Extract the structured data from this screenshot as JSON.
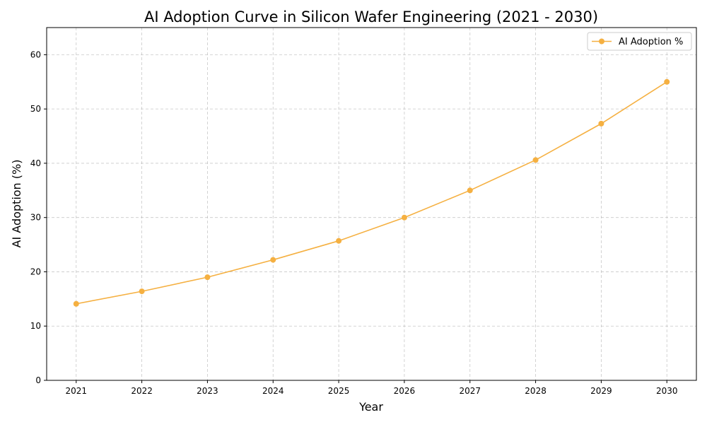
{
  "chart_data": {
    "type": "line",
    "title": "AI Adoption Curve in Silicon Wafer Engineering (2021 - 2030)",
    "xlabel": "Year",
    "ylabel": "AI Adoption (%)",
    "x": [
      2021,
      2022,
      2023,
      2024,
      2025,
      2026,
      2027,
      2028,
      2029,
      2030
    ],
    "x_tick_labels": [
      "2021",
      "2022",
      "2023",
      "2024",
      "2025",
      "2026",
      "2027",
      "2028",
      "2029",
      "2030"
    ],
    "y_ticks": [
      0,
      10,
      20,
      30,
      40,
      50,
      60
    ],
    "xlim": [
      2020.55,
      2030.45
    ],
    "ylim": [
      0,
      65
    ],
    "grid": true,
    "grid_style": "dashed",
    "legend_position": "upper-right",
    "series": [
      {
        "name": "AI Adoption %",
        "values": [
          14.1,
          16.4,
          19.0,
          22.2,
          25.7,
          30.0,
          35.0,
          40.6,
          47.3,
          55.0
        ],
        "color": "#f5b041",
        "marker": "circle"
      }
    ]
  }
}
